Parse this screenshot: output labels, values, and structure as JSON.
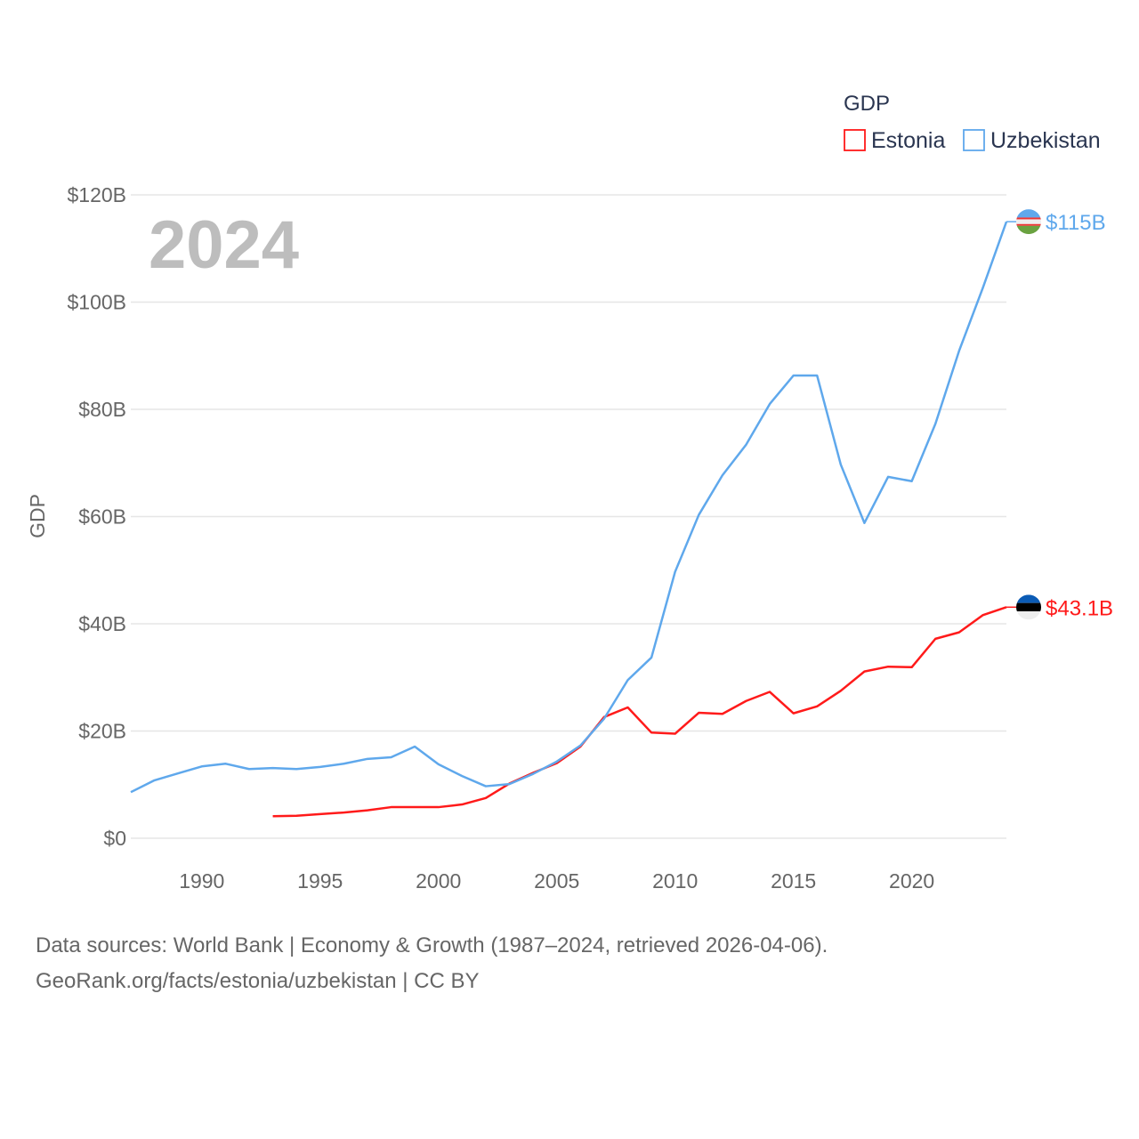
{
  "chart_data": {
    "type": "line",
    "title": "GDP",
    "year_label": "2024",
    "xlabel": "",
    "ylabel": "GDP",
    "xlim": [
      1987,
      2024
    ],
    "ylim": [
      0,
      120
    ],
    "x_ticks": [
      1990,
      1995,
      2000,
      2005,
      2010,
      2015,
      2020
    ],
    "y_ticks": [
      0,
      20,
      40,
      60,
      80,
      100,
      120
    ],
    "y_tick_labels": [
      "$0",
      "$20B",
      "$40B",
      "$60B",
      "$80B",
      "$100B",
      "$120B"
    ],
    "grid": true,
    "legend_position": "top-right",
    "series": [
      {
        "name": "Estonia",
        "color": "#ff1a1a",
        "end_label": "$43.1B",
        "flag": "estonia-flag",
        "x": [
          1993,
          1994,
          1995,
          1996,
          1997,
          1998,
          1999,
          2000,
          2001,
          2002,
          2003,
          2004,
          2005,
          2006,
          2007,
          2008,
          2009,
          2010,
          2011,
          2012,
          2013,
          2014,
          2015,
          2016,
          2017,
          2018,
          2019,
          2020,
          2021,
          2022,
          2023,
          2024
        ],
        "values": [
          4.1,
          4.2,
          4.5,
          4.8,
          5.2,
          5.8,
          5.8,
          5.8,
          6.3,
          7.5,
          10.2,
          12.2,
          14.0,
          17.1,
          22.6,
          24.4,
          19.7,
          19.5,
          23.4,
          23.2,
          25.6,
          27.3,
          23.3,
          24.6,
          27.5,
          31.1,
          32.0,
          31.9,
          37.2,
          38.4,
          41.6,
          43.1
        ]
      },
      {
        "name": "Uzbekistan",
        "color": "#5fa8ec",
        "end_label": "$115B",
        "flag": "uzbekistan-flag",
        "x": [
          1987,
          1988,
          1989,
          1990,
          1991,
          1992,
          1993,
          1994,
          1995,
          1996,
          1997,
          1998,
          1999,
          2000,
          2001,
          2002,
          2003,
          2004,
          2005,
          2006,
          2007,
          2008,
          2009,
          2010,
          2011,
          2012,
          2013,
          2014,
          2015,
          2016,
          2017,
          2018,
          2019,
          2020,
          2021,
          2022,
          2023,
          2024
        ],
        "values": [
          8.6,
          10.8,
          12.1,
          13.4,
          13.9,
          12.9,
          13.1,
          12.9,
          13.3,
          13.9,
          14.8,
          15.1,
          17.1,
          13.8,
          11.6,
          9.7,
          10.1,
          12.0,
          14.3,
          17.3,
          22.3,
          29.5,
          33.7,
          49.7,
          60.3,
          67.7,
          73.4,
          81.0,
          86.3,
          86.3,
          69.7,
          58.8,
          67.4,
          66.6,
          77.3,
          90.9,
          102.6,
          115.0
        ]
      }
    ]
  },
  "footer": {
    "line1": "Data sources: World Bank | Economy & Growth (1987–2024, retrieved 2026-04-06).",
    "line2": "GeoRank.org/facts/estonia/uzbekistan | CC BY"
  }
}
